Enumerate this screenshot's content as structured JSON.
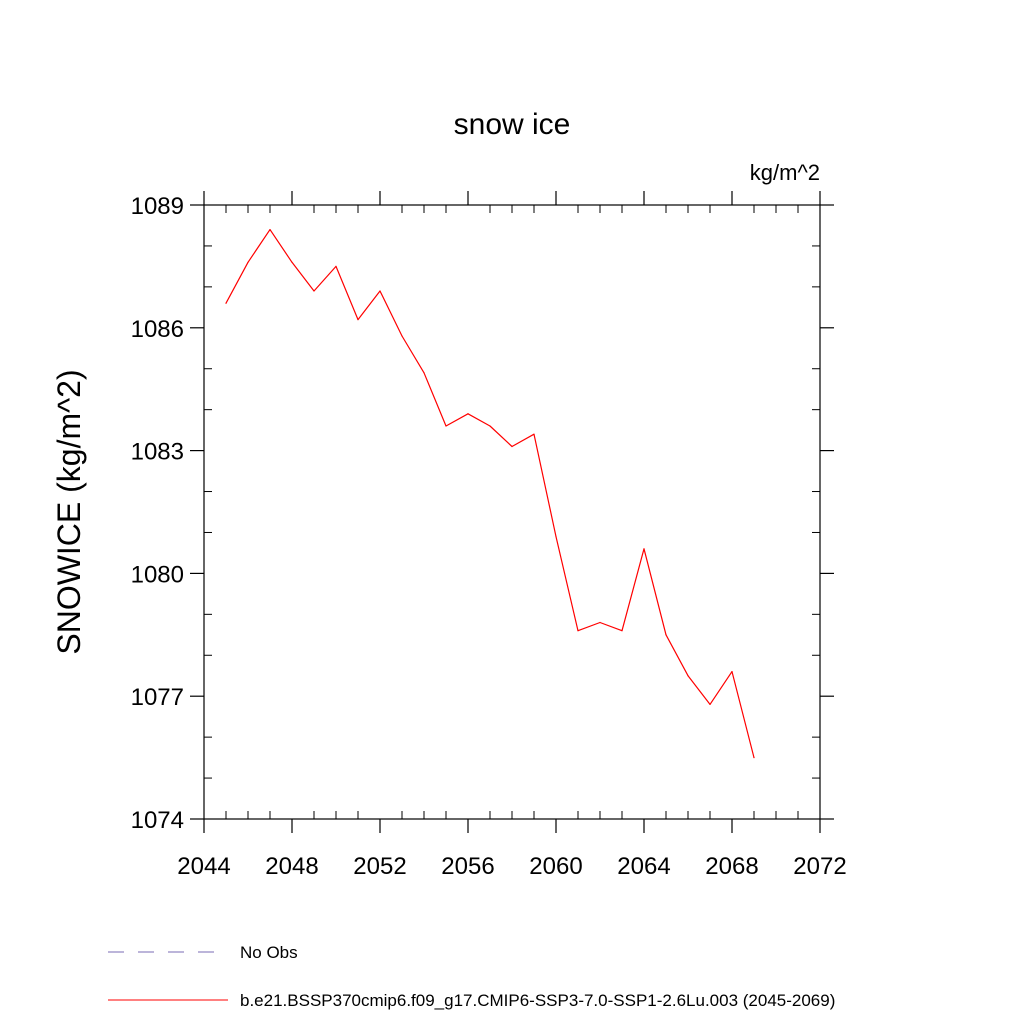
{
  "chart_data": {
    "type": "line",
    "title": "snow ice",
    "units": "kg/m^2",
    "xlabel": "",
    "ylabel": "SNOWICE  (kg/m^2)",
    "xlim": [
      2044,
      2072
    ],
    "ylim": [
      1074,
      1089
    ],
    "xticks": [
      2044,
      2048,
      2052,
      2056,
      2060,
      2064,
      2068,
      2072
    ],
    "yticks": [
      1074,
      1077,
      1080,
      1083,
      1086,
      1089
    ],
    "grid": false,
    "legend_position": "bottom",
    "legend": [
      {
        "label": "No Obs",
        "color": "#7a6bb5",
        "style": "dashed"
      },
      {
        "label": "b.e21.BSSP370cmip6.f09_g17.CMIP6-SSP3-7.0-SSP1-2.6Lu.003 (2045-2069)",
        "color": "#ff0000",
        "style": "solid"
      }
    ],
    "series": [
      {
        "color": "#ff0000",
        "x": [
          2045,
          2046,
          2047,
          2048,
          2049,
          2050,
          2051,
          2052,
          2053,
          2054,
          2055,
          2056,
          2057,
          2058,
          2059,
          2060,
          2061,
          2062,
          2063,
          2064,
          2065,
          2066,
          2067,
          2068,
          2069
        ],
        "y": [
          1086.6,
          1087.6,
          1088.4,
          1087.6,
          1086.9,
          1087.5,
          1086.2,
          1086.9,
          1085.8,
          1084.9,
          1083.6,
          1083.9,
          1083.6,
          1083.1,
          1083.4,
          1080.9,
          1078.6,
          1078.8,
          1078.6,
          1080.6,
          1078.5,
          1077.5,
          1076.8,
          1077.6,
          1075.5
        ]
      }
    ]
  }
}
